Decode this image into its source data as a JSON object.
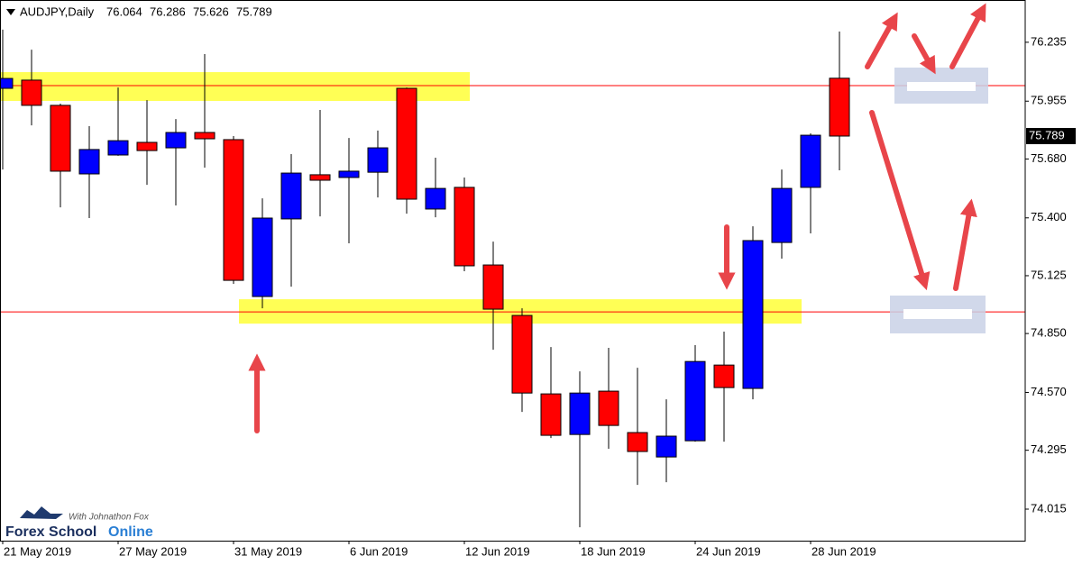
{
  "chart_data": {
    "type": "candlestick",
    "title": "AUDJPY,Daily",
    "categories": [
      "21 May 2019",
      null,
      null,
      null,
      "27 May 2019",
      null,
      null,
      null,
      "31 May 2019",
      null,
      null,
      null,
      "6 Jun 2019",
      null,
      null,
      null,
      "12 Jun 2019",
      null,
      null,
      null,
      "18 Jun 2019",
      null,
      null,
      null,
      "24 Jun 2019",
      null,
      null,
      null,
      "28 Jun 2019",
      null
    ],
    "open": [
      76.016,
      76.055,
      75.935,
      75.609,
      75.699,
      75.759,
      75.733,
      75.806,
      75.772,
      75.026,
      75.395,
      75.605,
      75.592,
      75.617,
      76.016,
      75.442,
      75.545,
      75.176,
      74.936,
      74.563,
      74.37,
      74.576,
      74.379,
      74.263,
      74.34,
      74.7,
      74.589,
      75.283,
      75.545,
      76.064
    ],
    "high": [
      76.295,
      76.2,
      75.943,
      75.836,
      76.02,
      75.96,
      75.87,
      76.179,
      75.789,
      75.493,
      75.703,
      75.913,
      75.78,
      75.815,
      76.02,
      75.686,
      75.592,
      75.287,
      74.97,
      74.786,
      74.67,
      74.782,
      74.687,
      74.537,
      74.795,
      74.859,
      75.36,
      75.63,
      75.802,
      76.286
    ],
    "low": [
      75.63,
      75.84,
      75.45,
      75.399,
      75.695,
      75.557,
      75.459,
      75.639,
      75.086,
      74.97,
      75.073,
      75.407,
      75.279,
      75.497,
      75.42,
      75.403,
      75.146,
      74.773,
      74.477,
      74.353,
      73.929,
      74.302,
      74.13,
      74.143,
      74.336,
      74.336,
      74.537,
      75.206,
      75.326,
      75.626
    ],
    "close": [
      76.063,
      75.935,
      75.622,
      75.725,
      75.767,
      75.72,
      75.806,
      75.776,
      75.103,
      75.399,
      75.613,
      75.579,
      75.622,
      75.733,
      75.489,
      75.54,
      75.172,
      74.966,
      74.567,
      74.366,
      74.567,
      74.413,
      74.289,
      74.362,
      74.717,
      74.593,
      75.292,
      75.54,
      75.793,
      75.789
    ],
    "up_color": "#0000ff",
    "down_color": "#ff0000",
    "ylim": [
      73.865,
      76.436
    ],
    "yticks": [
      76.235,
      75.955,
      {
        "value": 75.68,
        "label": "75.680"
      },
      {
        "value": 75.4,
        "label": "75.400"
      },
      75.125,
      {
        "value": 74.85,
        "label": "74.850"
      },
      {
        "value": 74.57,
        "label": "74.570"
      },
      74.295,
      74.015
    ],
    "hlines": [
      76.029,
      74.953
    ],
    "hline_color": "#ff0000",
    "zones": [
      {
        "from": 75.956,
        "to": 76.093
      },
      {
        "from": 74.897,
        "to": 75.013
      }
    ],
    "zone_color": "#ffff55",
    "watermark": {
      "tagline": "With Johnathon Fox",
      "brand": "Forex School",
      "brand_accent": "Online"
    }
  }
}
